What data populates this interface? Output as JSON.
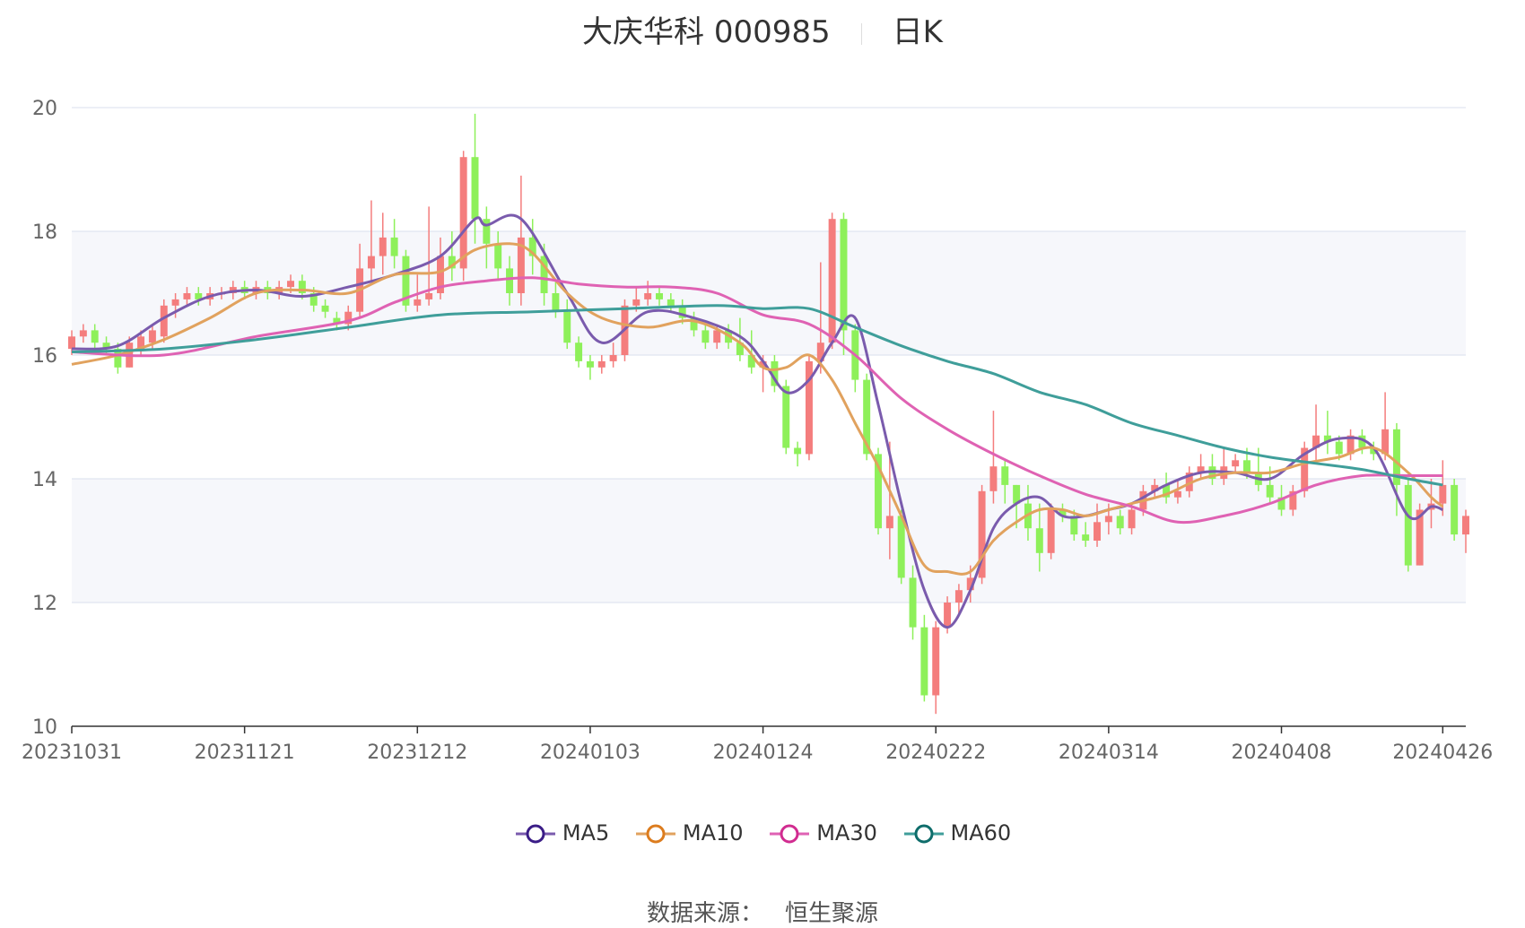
{
  "title": {
    "name": "大庆华科 000985",
    "period": "日K"
  },
  "source": {
    "label": "数据来源：",
    "value": "恒生聚源"
  },
  "colors": {
    "up": "#f47d7d",
    "down": "#8ef05a",
    "grid": "#d9dfee",
    "band": "#f6f7fb",
    "axis": "#666666",
    "ma5": "#7a5bad",
    "ma10": "#e1a25e",
    "ma30": "#df62b3",
    "ma60": "#3f9e9a",
    "ma5_marker": "#3b1d87",
    "ma10_marker": "#dc7c1e",
    "ma30_marker": "#d12c90",
    "ma60_marker": "#0f6d6b"
  },
  "chart_data": {
    "type": "candlestick",
    "ylim": [
      10,
      20
    ],
    "yticks": [
      10,
      12,
      14,
      16,
      18,
      20
    ],
    "xtick_labels": [
      "20231031",
      "20231121",
      "20231212",
      "20240103",
      "20240124",
      "20240222",
      "20240314",
      "20240408",
      "20240426"
    ],
    "xtick_index": [
      0,
      15,
      30,
      45,
      60,
      75,
      90,
      105,
      119
    ],
    "grid": true,
    "legend_position": "bottom",
    "candles": [
      [
        16.1,
        16.3,
        16.0,
        16.4
      ],
      [
        16.3,
        16.4,
        16.2,
        16.5
      ],
      [
        16.4,
        16.2,
        16.1,
        16.5
      ],
      [
        16.2,
        16.1,
        16.0,
        16.3
      ],
      [
        16.1,
        15.8,
        15.7,
        16.2
      ],
      [
        15.8,
        16.2,
        15.8,
        16.3
      ],
      [
        16.1,
        16.3,
        16.0,
        16.4
      ],
      [
        16.2,
        16.4,
        16.1,
        16.5
      ],
      [
        16.3,
        16.8,
        16.2,
        16.9
      ],
      [
        16.8,
        16.9,
        16.6,
        17.0
      ],
      [
        16.9,
        17.0,
        16.8,
        17.1
      ],
      [
        17.0,
        16.9,
        16.8,
        17.1
      ],
      [
        16.9,
        17.0,
        16.8,
        17.1
      ],
      [
        17.0,
        17.0,
        16.9,
        17.1
      ],
      [
        17.0,
        17.1,
        16.9,
        17.2
      ],
      [
        17.1,
        17.0,
        16.9,
        17.2
      ],
      [
        17.0,
        17.1,
        16.9,
        17.2
      ],
      [
        17.1,
        17.0,
        16.9,
        17.2
      ],
      [
        17.0,
        17.1,
        16.9,
        17.2
      ],
      [
        17.1,
        17.2,
        17.0,
        17.3
      ],
      [
        17.2,
        17.0,
        16.9,
        17.3
      ],
      [
        17.0,
        16.8,
        16.7,
        17.1
      ],
      [
        16.8,
        16.7,
        16.6,
        16.9
      ],
      [
        16.6,
        16.5,
        16.4,
        16.7
      ],
      [
        16.5,
        16.7,
        16.4,
        16.8
      ],
      [
        16.7,
        17.4,
        16.6,
        17.8
      ],
      [
        17.4,
        17.6,
        17.2,
        18.5
      ],
      [
        17.6,
        17.9,
        17.3,
        18.3
      ],
      [
        17.9,
        17.6,
        17.4,
        18.2
      ],
      [
        17.6,
        16.8,
        16.7,
        17.7
      ],
      [
        16.8,
        16.9,
        16.7,
        17.3
      ],
      [
        16.9,
        17.0,
        16.8,
        18.4
      ],
      [
        17.0,
        17.6,
        16.9,
        17.9
      ],
      [
        17.6,
        17.4,
        17.2,
        18.0
      ],
      [
        17.4,
        19.2,
        17.2,
        19.3
      ],
      [
        19.2,
        18.2,
        17.8,
        19.9
      ],
      [
        18.2,
        17.8,
        17.4,
        18.4
      ],
      [
        17.8,
        17.4,
        17.2,
        18.0
      ],
      [
        17.4,
        17.0,
        16.8,
        17.6
      ],
      [
        17.0,
        17.9,
        16.8,
        18.9
      ],
      [
        17.9,
        17.6,
        17.3,
        18.2
      ],
      [
        17.6,
        17.0,
        16.8,
        17.8
      ],
      [
        17.0,
        16.7,
        16.6,
        17.2
      ],
      [
        16.7,
        16.2,
        16.1,
        16.9
      ],
      [
        16.2,
        15.9,
        15.8,
        16.3
      ],
      [
        15.9,
        15.8,
        15.6,
        16.0
      ],
      [
        15.8,
        15.9,
        15.7,
        16.0
      ],
      [
        15.9,
        16.0,
        15.8,
        16.2
      ],
      [
        16.0,
        16.8,
        15.9,
        16.9
      ],
      [
        16.8,
        16.9,
        16.7,
        17.1
      ],
      [
        16.9,
        17.0,
        16.8,
        17.2
      ],
      [
        17.0,
        16.9,
        16.8,
        17.1
      ],
      [
        16.9,
        16.8,
        16.7,
        17.0
      ],
      [
        16.8,
        16.6,
        16.5,
        16.9
      ],
      [
        16.6,
        16.4,
        16.3,
        16.7
      ],
      [
        16.4,
        16.2,
        16.1,
        16.5
      ],
      [
        16.2,
        16.4,
        16.1,
        16.5
      ],
      [
        16.4,
        16.2,
        16.1,
        16.5
      ],
      [
        16.2,
        16.0,
        15.9,
        16.6
      ],
      [
        16.0,
        15.8,
        15.7,
        16.4
      ],
      [
        15.8,
        15.9,
        15.4,
        16.0
      ],
      [
        15.9,
        15.5,
        15.4,
        16.0
      ],
      [
        15.5,
        14.5,
        14.4,
        15.6
      ],
      [
        14.5,
        14.4,
        14.2,
        14.6
      ],
      [
        14.4,
        15.9,
        14.3,
        16.0
      ],
      [
        15.9,
        16.2,
        15.7,
        17.5
      ],
      [
        16.2,
        18.2,
        16.1,
        18.3
      ],
      [
        18.2,
        16.4,
        16.0,
        18.3
      ],
      [
        16.4,
        15.6,
        15.4,
        16.5
      ],
      [
        15.6,
        14.4,
        14.3,
        15.7
      ],
      [
        14.4,
        13.2,
        13.1,
        14.5
      ],
      [
        13.2,
        13.4,
        12.7,
        14.6
      ],
      [
        13.4,
        12.4,
        12.3,
        13.5
      ],
      [
        12.4,
        11.6,
        11.4,
        12.6
      ],
      [
        11.6,
        10.5,
        10.4,
        11.8
      ],
      [
        10.5,
        11.6,
        10.2,
        11.7
      ],
      [
        11.6,
        12.0,
        11.5,
        12.1
      ],
      [
        12.0,
        12.2,
        11.8,
        12.3
      ],
      [
        12.2,
        12.4,
        12.0,
        12.6
      ],
      [
        12.4,
        13.8,
        12.3,
        13.9
      ],
      [
        13.8,
        14.2,
        13.6,
        15.1
      ],
      [
        14.2,
        13.9,
        13.6,
        14.3
      ],
      [
        13.9,
        13.6,
        13.2,
        13.9
      ],
      [
        13.6,
        13.2,
        13.0,
        13.9
      ],
      [
        13.2,
        12.8,
        12.5,
        13.6
      ],
      [
        12.8,
        13.5,
        12.7,
        13.6
      ],
      [
        13.5,
        13.4,
        13.3,
        13.6
      ],
      [
        13.4,
        13.1,
        13.0,
        13.5
      ],
      [
        13.1,
        13.0,
        12.9,
        13.3
      ],
      [
        13.0,
        13.3,
        12.9,
        13.6
      ],
      [
        13.3,
        13.4,
        13.1,
        13.6
      ],
      [
        13.4,
        13.2,
        13.1,
        13.5
      ],
      [
        13.2,
        13.5,
        13.1,
        13.6
      ],
      [
        13.5,
        13.8,
        13.4,
        13.9
      ],
      [
        13.8,
        13.9,
        13.7,
        14.0
      ],
      [
        13.9,
        13.7,
        13.6,
        14.1
      ],
      [
        13.7,
        13.8,
        13.6,
        14.0
      ],
      [
        13.8,
        14.1,
        13.7,
        14.2
      ],
      [
        14.1,
        14.2,
        14.0,
        14.4
      ],
      [
        14.2,
        14.0,
        13.9,
        14.4
      ],
      [
        14.0,
        14.2,
        13.9,
        14.5
      ],
      [
        14.2,
        14.3,
        14.1,
        14.4
      ],
      [
        14.3,
        14.1,
        14.0,
        14.5
      ],
      [
        14.1,
        13.9,
        13.8,
        14.5
      ],
      [
        13.9,
        13.7,
        13.6,
        14.2
      ],
      [
        13.7,
        13.5,
        13.4,
        13.9
      ],
      [
        13.5,
        13.8,
        13.4,
        13.9
      ],
      [
        13.8,
        14.5,
        13.7,
        14.6
      ],
      [
        14.5,
        14.7,
        14.3,
        15.2
      ],
      [
        14.7,
        14.6,
        14.4,
        15.1
      ],
      [
        14.6,
        14.4,
        14.3,
        14.7
      ],
      [
        14.4,
        14.7,
        14.3,
        14.8
      ],
      [
        14.7,
        14.5,
        14.4,
        14.8
      ],
      [
        14.5,
        14.4,
        14.3,
        14.6
      ],
      [
        14.4,
        14.8,
        14.3,
        15.4
      ],
      [
        14.8,
        13.9,
        13.4,
        14.9
      ],
      [
        13.9,
        12.6,
        12.5,
        14.0
      ],
      [
        12.6,
        13.5,
        12.6,
        13.6
      ],
      [
        13.5,
        13.6,
        13.2,
        14.0
      ],
      [
        13.6,
        13.9,
        13.4,
        14.3
      ],
      [
        13.9,
        13.1,
        13.0,
        14.0
      ],
      [
        13.1,
        13.4,
        12.8,
        13.5
      ]
    ],
    "series": [
      {
        "name": "MA5",
        "x": [
          0,
          4,
          8,
          12,
          16,
          20,
          24,
          28,
          32,
          35,
          36,
          39,
          43,
          46,
          50,
          54,
          58,
          60,
          62,
          64,
          66,
          68,
          70,
          72,
          74,
          76,
          78,
          80,
          82,
          84,
          86,
          88,
          90,
          92,
          95,
          98,
          101,
          104,
          107,
          110,
          113,
          116,
          118,
          119
        ],
        "values": [
          16.1,
          16.15,
          16.6,
          16.95,
          17.05,
          16.95,
          17.1,
          17.3,
          17.6,
          18.2,
          18.1,
          18.2,
          17.0,
          16.2,
          16.7,
          16.6,
          16.3,
          15.9,
          15.4,
          15.6,
          16.2,
          16.6,
          15.2,
          13.6,
          12.2,
          11.6,
          12.2,
          13.2,
          13.6,
          13.7,
          13.4,
          13.4,
          13.5,
          13.6,
          13.9,
          14.1,
          14.1,
          14.0,
          14.4,
          14.65,
          14.5,
          13.4,
          13.55,
          13.5
        ]
      },
      {
        "name": "MA10",
        "x": [
          0,
          4,
          8,
          12,
          16,
          20,
          24,
          28,
          32,
          35,
          38,
          40,
          43,
          46,
          50,
          54,
          58,
          60,
          62,
          64,
          66,
          68,
          70,
          72,
          74,
          76,
          78,
          80,
          82,
          84,
          86,
          88,
          90,
          92,
          95,
          98,
          101,
          104,
          107,
          110,
          113,
          116,
          118,
          119
        ],
        "values": [
          15.85,
          16.0,
          16.25,
          16.6,
          17.0,
          17.05,
          17.0,
          17.3,
          17.35,
          17.7,
          17.8,
          17.65,
          17.0,
          16.6,
          16.45,
          16.55,
          16.2,
          15.8,
          15.8,
          16.0,
          15.6,
          14.9,
          14.2,
          13.4,
          12.6,
          12.5,
          12.5,
          13.0,
          13.3,
          13.5,
          13.5,
          13.4,
          13.5,
          13.6,
          13.75,
          14.0,
          14.1,
          14.1,
          14.25,
          14.35,
          14.5,
          14.1,
          13.7,
          13.55
        ]
      },
      {
        "name": "MA30",
        "x": [
          0,
          8,
          16,
          24,
          28,
          32,
          36,
          40,
          44,
          48,
          52,
          56,
          60,
          64,
          68,
          72,
          76,
          80,
          84,
          88,
          92,
          96,
          100,
          104,
          108,
          112,
          116,
          119
        ],
        "values": [
          16.05,
          16.0,
          16.3,
          16.55,
          16.85,
          17.1,
          17.2,
          17.25,
          17.15,
          17.1,
          17.1,
          17.0,
          16.65,
          16.5,
          16.0,
          15.3,
          14.8,
          14.4,
          14.05,
          13.75,
          13.55,
          13.3,
          13.4,
          13.6,
          13.9,
          14.05,
          14.05,
          14.05
        ]
      },
      {
        "name": "MA60",
        "x": [
          0,
          8,
          16,
          24,
          32,
          40,
          48,
          56,
          60,
          64,
          68,
          72,
          76,
          80,
          84,
          88,
          92,
          96,
          100,
          104,
          108,
          112,
          116,
          119
        ],
        "values": [
          16.05,
          16.1,
          16.25,
          16.45,
          16.65,
          16.7,
          16.75,
          16.8,
          16.75,
          16.75,
          16.45,
          16.15,
          15.9,
          15.7,
          15.4,
          15.2,
          14.9,
          14.7,
          14.5,
          14.35,
          14.25,
          14.15,
          14.0,
          13.9
        ]
      }
    ]
  }
}
